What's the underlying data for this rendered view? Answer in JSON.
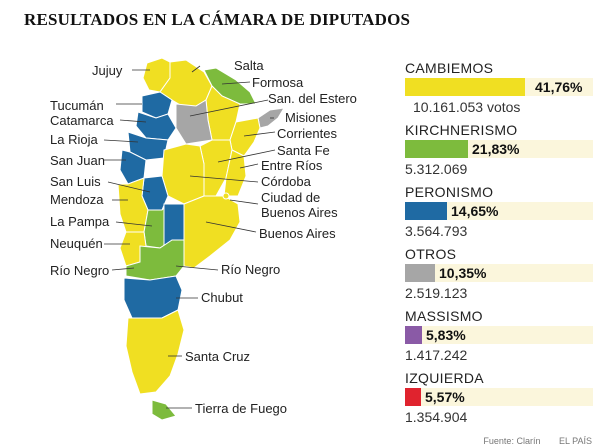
{
  "title": "RESULTADOS EN LA CÁMARA DE DIPUTADOS",
  "colors": {
    "cambiemos": "#f0df22",
    "kirchnerismo": "#7dbb3d",
    "peronismo": "#1f6aa3",
    "otros": "#a6a6a6",
    "massismo": "#8a5aa6",
    "izquierda": "#e0232e"
  },
  "provinces": {
    "jujuy": "Jujuy",
    "salta": "Salta",
    "formosa": "Formosa",
    "tucuman": "Tucumán",
    "catamarca": "Catamarca",
    "santiago": "San. del Estero",
    "misiones": "Misiones",
    "larioja": "La Rioja",
    "corrientes": "Corrientes",
    "sanjuan": "San Juan",
    "santafe": "Santa Fe",
    "entrerios": "Entre Ríos",
    "sanluis": "San Luis",
    "cordoba": "Córdoba",
    "mendoza": "Mendoza",
    "caba1": "Ciudad de",
    "caba2": "Buenos Aires",
    "lapampa": "La Pampa",
    "buenosaires": "Buenos Aires",
    "neuquen": "Neuquén",
    "rionegro_left": "Río Negro",
    "rionegro_right": "Río Negro",
    "chubut": "Chubut",
    "santacruz": "Santa Cruz",
    "tierradelfuego": "Tierra de Fuego"
  },
  "parties": [
    {
      "name": "CAMBIEMOS",
      "pct": "41,76%",
      "share": 41.76,
      "votes": "10.161.053 votos",
      "color_key": "cambiemos"
    },
    {
      "name": "KIRCHNERISMO",
      "pct": "21,83%",
      "share": 21.83,
      "votes": "5.312.069",
      "color_key": "kirchnerismo"
    },
    {
      "name": "PERONISMO",
      "pct": "14,65%",
      "share": 14.65,
      "votes": "3.564.793",
      "color_key": "peronismo"
    },
    {
      "name": "OTROS",
      "pct": "10,35%",
      "share": 10.35,
      "votes": "2.519.123",
      "color_key": "otros"
    },
    {
      "name": "MASSISMO",
      "pct": "5,83%",
      "share": 5.83,
      "votes": "1.417.242",
      "color_key": "massismo"
    },
    {
      "name": "IZQUIERDA",
      "pct": "5,57%",
      "share": 5.57,
      "votes": "1.354.904",
      "color_key": "izquierda"
    }
  ],
  "source": "Fuente: Clarín",
  "publisher": "EL PAÍS"
}
